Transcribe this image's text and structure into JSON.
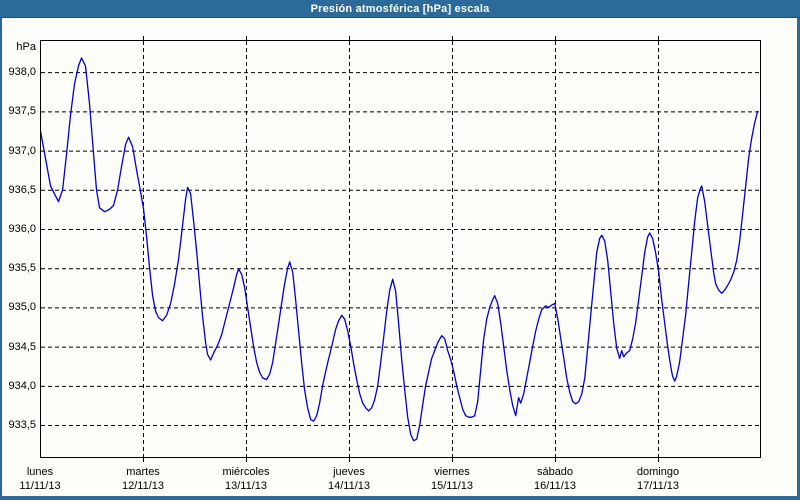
{
  "window": {
    "title": "Presión atmosférica [hPa] escala"
  },
  "theme": {
    "titlebar_color": "#2c6a99",
    "titlebar_text_color": "#ffffff",
    "window_border_color": "#2c6a99",
    "background_color": "#fdfdfa",
    "grid_color": "#000000",
    "line_color": "#0000c8",
    "text_color": "#000000"
  },
  "chart_data": {
    "type": "line",
    "title": "Presión atmosférica [hPa] escala",
    "ylabel": "hPa",
    "grid": "dashed",
    "legend": "none",
    "y_ticks": [
      938.0,
      937.5,
      937.0,
      936.5,
      936.0,
      935.5,
      935.0,
      934.5,
      934.0,
      933.5
    ],
    "y_tick_labels": [
      "938,0",
      "937,5",
      "937,0",
      "936,5",
      "936,0",
      "935,5",
      "935,0",
      "934,5",
      "934,0",
      "933,5"
    ],
    "ylim": [
      933.08,
      938.41
    ],
    "xlim_days": [
      0,
      7
    ],
    "x_day_labels": [
      {
        "weekday": "lunes",
        "date": "11/11/13"
      },
      {
        "weekday": "martes",
        "date": "12/11/13"
      },
      {
        "weekday": "miércoles",
        "date": "13/11/13"
      },
      {
        "weekday": "jueves",
        "date": "14/11/13"
      },
      {
        "weekday": "viernes",
        "date": "15/11/13"
      },
      {
        "weekday": "sábado",
        "date": "16/11/13"
      },
      {
        "weekday": "domingo",
        "date": "17/11/13"
      }
    ],
    "series": [
      {
        "name": "Presión atmosférica",
        "unit": "hPa",
        "x_unit": "days since 11/11/13 00:00",
        "points": [
          [
            0.005,
            937.25
          ],
          [
            0.053,
            936.9
          ],
          [
            0.102,
            936.55
          ],
          [
            0.151,
            936.42
          ],
          [
            0.18,
            936.35
          ],
          [
            0.219,
            936.5
          ],
          [
            0.257,
            936.95
          ],
          [
            0.296,
            937.45
          ],
          [
            0.335,
            937.85
          ],
          [
            0.374,
            938.08
          ],
          [
            0.403,
            938.18
          ],
          [
            0.442,
            938.08
          ],
          [
            0.481,
            937.6
          ],
          [
            0.52,
            936.95
          ],
          [
            0.549,
            936.5
          ],
          [
            0.578,
            936.27
          ],
          [
            0.627,
            936.22
          ],
          [
            0.675,
            936.25
          ],
          [
            0.714,
            936.3
          ],
          [
            0.753,
            936.5
          ],
          [
            0.792,
            936.8
          ],
          [
            0.831,
            937.08
          ],
          [
            0.86,
            937.17
          ],
          [
            0.899,
            937.05
          ],
          [
            0.938,
            936.75
          ],
          [
            0.976,
            936.48
          ],
          [
            1.006,
            936.25
          ],
          [
            1.035,
            935.9
          ],
          [
            1.064,
            935.5
          ],
          [
            1.093,
            935.15
          ],
          [
            1.122,
            934.95
          ],
          [
            1.151,
            934.87
          ],
          [
            1.19,
            934.83
          ],
          [
            1.229,
            934.9
          ],
          [
            1.268,
            935.05
          ],
          [
            1.307,
            935.3
          ],
          [
            1.346,
            935.62
          ],
          [
            1.384,
            936.05
          ],
          [
            1.414,
            936.38
          ],
          [
            1.433,
            936.53
          ],
          [
            1.462,
            936.45
          ],
          [
            1.491,
            936.1
          ],
          [
            1.52,
            935.72
          ],
          [
            1.55,
            935.28
          ],
          [
            1.579,
            934.88
          ],
          [
            1.608,
            934.55
          ],
          [
            1.627,
            934.4
          ],
          [
            1.656,
            934.33
          ],
          [
            1.686,
            934.42
          ],
          [
            1.725,
            934.52
          ],
          [
            1.763,
            934.65
          ],
          [
            1.802,
            934.85
          ],
          [
            1.841,
            935.05
          ],
          [
            1.88,
            935.25
          ],
          [
            1.909,
            935.42
          ],
          [
            1.929,
            935.49
          ],
          [
            1.958,
            935.42
          ],
          [
            1.987,
            935.25
          ],
          [
            2.016,
            935.0
          ],
          [
            2.045,
            934.75
          ],
          [
            2.074,
            934.5
          ],
          [
            2.103,
            934.3
          ],
          [
            2.133,
            934.17
          ],
          [
            2.162,
            934.1
          ],
          [
            2.2,
            934.08
          ],
          [
            2.23,
            934.15
          ],
          [
            2.259,
            934.3
          ],
          [
            2.288,
            934.55
          ],
          [
            2.317,
            934.8
          ],
          [
            2.346,
            935.05
          ],
          [
            2.375,
            935.3
          ],
          [
            2.404,
            935.5
          ],
          [
            2.424,
            935.58
          ],
          [
            2.453,
            935.45
          ],
          [
            2.482,
            935.1
          ],
          [
            2.511,
            934.7
          ],
          [
            2.54,
            934.3
          ],
          [
            2.569,
            933.95
          ],
          [
            2.598,
            933.72
          ],
          [
            2.628,
            933.57
          ],
          [
            2.657,
            933.55
          ],
          [
            2.686,
            933.62
          ],
          [
            2.715,
            933.78
          ],
          [
            2.744,
            934.0
          ],
          [
            2.773,
            934.18
          ],
          [
            2.803,
            934.35
          ],
          [
            2.832,
            934.5
          ],
          [
            2.87,
            934.72
          ],
          [
            2.899,
            934.83
          ],
          [
            2.929,
            934.9
          ],
          [
            2.958,
            934.85
          ],
          [
            2.987,
            934.7
          ],
          [
            3.017,
            934.5
          ],
          [
            3.046,
            934.28
          ],
          [
            3.075,
            934.08
          ],
          [
            3.104,
            933.9
          ],
          [
            3.133,
            933.78
          ],
          [
            3.162,
            933.72
          ],
          [
            3.191,
            933.68
          ],
          [
            3.22,
            933.72
          ],
          [
            3.249,
            933.82
          ],
          [
            3.279,
            934.0
          ],
          [
            3.308,
            934.3
          ],
          [
            3.337,
            934.62
          ],
          [
            3.366,
            934.95
          ],
          [
            3.395,
            935.22
          ],
          [
            3.424,
            935.36
          ],
          [
            3.453,
            935.2
          ],
          [
            3.482,
            934.8
          ],
          [
            3.511,
            934.35
          ],
          [
            3.541,
            933.95
          ],
          [
            3.57,
            933.6
          ],
          [
            3.599,
            933.38
          ],
          [
            3.628,
            933.3
          ],
          [
            3.657,
            933.32
          ],
          [
            3.686,
            933.5
          ],
          [
            3.715,
            933.75
          ],
          [
            3.744,
            934.0
          ],
          [
            3.774,
            934.18
          ],
          [
            3.803,
            934.35
          ],
          [
            3.832,
            934.45
          ],
          [
            3.861,
            934.55
          ],
          [
            3.9,
            934.64
          ],
          [
            3.929,
            934.6
          ],
          [
            3.958,
            934.45
          ],
          [
            3.988,
            934.33
          ],
          [
            4.017,
            934.18
          ],
          [
            4.046,
            934.0
          ],
          [
            4.075,
            933.85
          ],
          [
            4.104,
            933.7
          ],
          [
            4.133,
            933.62
          ],
          [
            4.162,
            933.6
          ],
          [
            4.191,
            933.6
          ],
          [
            4.22,
            933.62
          ],
          [
            4.25,
            933.8
          ],
          [
            4.279,
            934.2
          ],
          [
            4.308,
            934.6
          ],
          [
            4.337,
            934.85
          ],
          [
            4.366,
            935.0
          ],
          [
            4.395,
            935.1
          ],
          [
            4.415,
            935.15
          ],
          [
            4.444,
            935.05
          ],
          [
            4.473,
            934.8
          ],
          [
            4.502,
            934.5
          ],
          [
            4.531,
            934.2
          ],
          [
            4.56,
            933.95
          ],
          [
            4.589,
            933.75
          ],
          [
            4.618,
            933.62
          ],
          [
            4.647,
            933.85
          ],
          [
            4.667,
            933.78
          ],
          [
            4.696,
            933.9
          ],
          [
            4.725,
            934.1
          ],
          [
            4.754,
            934.3
          ],
          [
            4.783,
            934.5
          ],
          [
            4.813,
            934.7
          ],
          [
            4.842,
            934.85
          ],
          [
            4.871,
            934.97
          ],
          [
            4.91,
            935.02
          ],
          [
            4.939,
            935.0
          ],
          [
            4.968,
            935.03
          ],
          [
            4.998,
            935.05
          ],
          [
            5.027,
            934.85
          ],
          [
            5.056,
            934.6
          ],
          [
            5.085,
            934.35
          ],
          [
            5.114,
            934.1
          ],
          [
            5.143,
            933.92
          ],
          [
            5.172,
            933.8
          ],
          [
            5.201,
            933.77
          ],
          [
            5.231,
            933.8
          ],
          [
            5.26,
            933.9
          ],
          [
            5.289,
            934.1
          ],
          [
            5.318,
            934.5
          ],
          [
            5.347,
            934.9
          ],
          [
            5.376,
            935.3
          ],
          [
            5.405,
            935.7
          ],
          [
            5.434,
            935.88
          ],
          [
            5.454,
            935.92
          ],
          [
            5.483,
            935.85
          ],
          [
            5.512,
            935.6
          ],
          [
            5.541,
            935.2
          ],
          [
            5.57,
            934.8
          ],
          [
            5.599,
            934.48
          ],
          [
            5.628,
            934.35
          ],
          [
            5.648,
            934.45
          ],
          [
            5.667,
            934.37
          ],
          [
            5.696,
            934.42
          ],
          [
            5.725,
            934.45
          ],
          [
            5.754,
            934.6
          ],
          [
            5.783,
            934.8
          ],
          [
            5.813,
            935.1
          ],
          [
            5.842,
            935.4
          ],
          [
            5.871,
            935.7
          ],
          [
            5.9,
            935.9
          ],
          [
            5.919,
            935.95
          ],
          [
            5.948,
            935.88
          ],
          [
            5.977,
            935.7
          ],
          [
            6.007,
            935.45
          ],
          [
            6.036,
            935.1
          ],
          [
            6.065,
            934.8
          ],
          [
            6.094,
            934.5
          ],
          [
            6.123,
            934.25
          ],
          [
            6.142,
            934.12
          ],
          [
            6.162,
            934.06
          ],
          [
            6.181,
            934.12
          ],
          [
            6.21,
            934.3
          ],
          [
            6.239,
            934.6
          ],
          [
            6.268,
            934.9
          ],
          [
            6.297,
            935.3
          ],
          [
            6.327,
            935.7
          ],
          [
            6.356,
            936.1
          ],
          [
            6.385,
            936.4
          ],
          [
            6.414,
            936.52
          ],
          [
            6.424,
            936.55
          ],
          [
            6.453,
            936.35
          ],
          [
            6.482,
            936.05
          ],
          [
            6.511,
            935.75
          ],
          [
            6.54,
            935.45
          ],
          [
            6.56,
            935.3
          ],
          [
            6.589,
            935.22
          ],
          [
            6.618,
            935.18
          ],
          [
            6.647,
            935.22
          ],
          [
            6.676,
            935.28
          ],
          [
            6.705,
            935.35
          ],
          [
            6.735,
            935.45
          ],
          [
            6.764,
            935.6
          ],
          [
            6.793,
            935.85
          ],
          [
            6.822,
            936.2
          ],
          [
            6.851,
            936.55
          ],
          [
            6.88,
            936.9
          ],
          [
            6.909,
            937.15
          ],
          [
            6.938,
            937.35
          ],
          [
            6.967,
            937.5
          ]
        ]
      }
    ]
  }
}
